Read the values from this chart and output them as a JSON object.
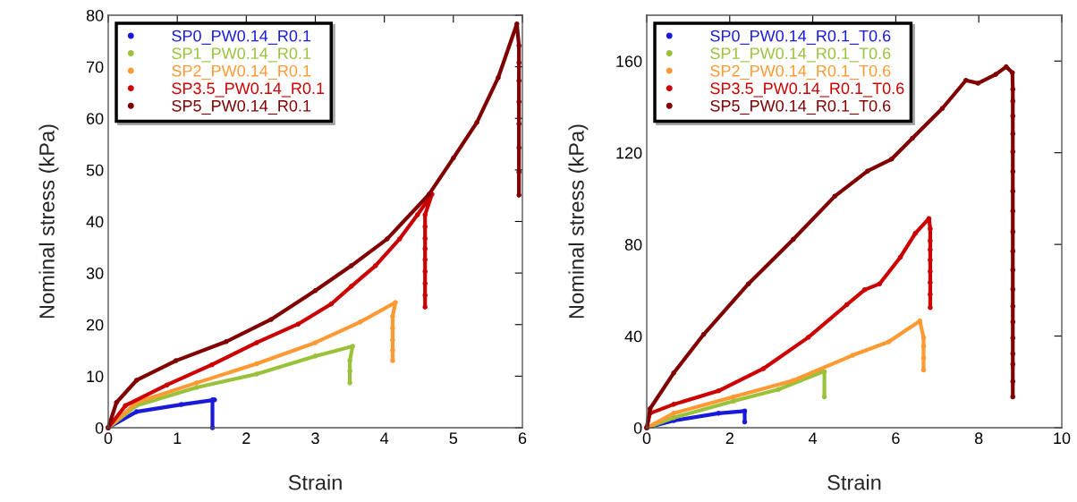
{
  "chart_data": [
    {
      "type": "line",
      "xlabel": "Strain",
      "ylabel": "Nominal stress (kPa)",
      "xlim": [
        0,
        6
      ],
      "ylim": [
        0,
        80
      ],
      "xticks": [
        0,
        1,
        2,
        3,
        4,
        5,
        6
      ],
      "yticks": [
        0,
        10,
        20,
        30,
        40,
        50,
        60,
        70,
        80
      ],
      "legend": "top left",
      "grid": false,
      "marker": "circle",
      "line_style": "solid",
      "series": [
        {
          "name": "SP0_PW0.14_R0.1",
          "color": "#1a1adb",
          "x": [
            0,
            0.41,
            1.06,
            1.54,
            1.51,
            1.51
          ],
          "values": [
            0,
            3.1,
            4.5,
            5.4,
            5.4,
            0
          ]
        },
        {
          "name": "SP1_PW0.14_R0.1",
          "color": "#99c23a",
          "x": [
            0,
            0.41,
            1.28,
            2.15,
            3.0,
            3.54,
            3.5,
            3.5,
            3.5
          ],
          "values": [
            0,
            4.3,
            7.8,
            10.4,
            13.9,
            15.8,
            13,
            11,
            8.7
          ]
        },
        {
          "name": "SP2_PW0.14_R0.1",
          "color": "#ff9933",
          "x": [
            0,
            0.41,
            1.28,
            2.15,
            3.0,
            3.65,
            4.16,
            4.12,
            4.12,
            4.12,
            4.12,
            4.12
          ],
          "values": [
            0,
            4.9,
            8.7,
            12.4,
            16.5,
            20.5,
            24.3,
            21.6,
            19.3,
            17.0,
            15.0,
            13.0
          ]
        },
        {
          "name": "SP3.5_PW0.14_R0.1",
          "color": "#cc0000",
          "x": [
            0,
            0.25,
            0.85,
            1.5,
            2.15,
            2.75,
            3.23,
            3.52,
            3.87,
            4.22,
            4.48,
            4.69,
            4.59,
            4.59,
            4.59,
            4.59,
            4.59,
            4.59,
            4.59,
            4.59,
            4.59
          ],
          "values": [
            0,
            4.3,
            8.3,
            12.2,
            16.5,
            20.1,
            24,
            27.4,
            31.4,
            36.6,
            41.3,
            45.3,
            41.3,
            39,
            36.7,
            34.7,
            32.6,
            30.3,
            28,
            25.7,
            23.4
          ]
        },
        {
          "name": "SP5_PW0.14_R0.1",
          "color": "#800000",
          "x": [
            0,
            0.12,
            0.41,
            0.98,
            1.71,
            2.36,
            3.0,
            3.52,
            4.04,
            4.65,
            5.0,
            5.34,
            5.65,
            5.92,
            5.95,
            5.95,
            5.95,
            5.95,
            5.95,
            5.95,
            5.95,
            5.95
          ],
          "values": [
            0,
            4.9,
            9.2,
            13.0,
            16.7,
            21,
            26.6,
            31.4,
            36.6,
            45.3,
            52.3,
            59.2,
            67.9,
            78.3,
            74.1,
            70.8,
            67.3,
            63.2,
            58.9,
            54.3,
            49.6,
            45.1
          ]
        }
      ]
    },
    {
      "type": "line",
      "xlabel": "Strain",
      "ylabel": "Nominal stress (kPa)",
      "xlim": [
        0,
        10
      ],
      "ylim": [
        0,
        180
      ],
      "xticks": [
        0,
        2,
        4,
        6,
        8,
        10
      ],
      "yticks": [
        0,
        40,
        80,
        120,
        160
      ],
      "legend": "top left",
      "grid": false,
      "marker": "circle",
      "line_style": "solid",
      "series": [
        {
          "name": "SP0_PW0.14_R0.1_T0.6",
          "color": "#1a1adb",
          "x": [
            0,
            0.65,
            1.73,
            2.36,
            2.36
          ],
          "values": [
            0,
            3.1,
            6.3,
            7.3,
            2.5
          ]
        },
        {
          "name": "SP1_PW0.14_R0.1_T0.6",
          "color": "#99c23a",
          "x": [
            0,
            0.65,
            2.09,
            3.17,
            4.25,
            4.28,
            4.28
          ],
          "values": [
            0,
            4.4,
            11.6,
            16.7,
            24.5,
            24.5,
            13.5
          ]
        },
        {
          "name": "SP2_PW0.14_R0.1_T0.6",
          "color": "#ff9933",
          "x": [
            0,
            0.65,
            2.09,
            3.53,
            4.96,
            5.83,
            6.58,
            6.67,
            6.67,
            6.67,
            6.67
          ],
          "values": [
            0,
            6.3,
            13.5,
            20.6,
            31.6,
            37.5,
            46.6,
            39.4,
            35.5,
            30.4,
            25.2
          ]
        },
        {
          "name": "SP3.5_PW0.14_R0.1_T0.6",
          "color": "#cc0000",
          "x": [
            0,
            0.08,
            0.65,
            1.73,
            2.81,
            3.89,
            4.82,
            5.25,
            5.61,
            6.11,
            6.47,
            6.8,
            6.83,
            6.83,
            6.83,
            6.83,
            6.83,
            6.83,
            6.83,
            6.83
          ],
          "values": [
            0,
            6.3,
            10.2,
            16.1,
            25.8,
            39.4,
            53.7,
            60.2,
            62.8,
            74.4,
            84.8,
            91.3,
            86.8,
            81.6,
            77.7,
            73.2,
            68.2,
            63.4,
            58.2,
            52.4
          ]
        },
        {
          "name": "SP5_PW0.14_R0.1_T0.6",
          "color": "#800000",
          "x": [
            0,
            0.08,
            0.65,
            1.37,
            2.45,
            3.53,
            4.53,
            5.32,
            5.9,
            6.4,
            7.12,
            7.69,
            7.98,
            8.41,
            8.66,
            8.81,
            8.82,
            8.82,
            8.82,
            8.82,
            8.82,
            8.82,
            8.82,
            8.82,
            8.82,
            8.82,
            8.82,
            8.82,
            8.82,
            8.82,
            8.82,
            8.82,
            8.82,
            8.82,
            8.82
          ],
          "values": [
            0,
            8.3,
            23.9,
            40.7,
            62.8,
            82.2,
            101,
            112,
            117.2,
            126.3,
            139.3,
            151.6,
            150.3,
            154.2,
            157.5,
            154.9,
            147.7,
            142.5,
            136.1,
            128.3,
            120.5,
            111.8,
            103.2,
            94.6,
            85.5,
            77.0,
            68.9,
            60.4,
            53.0,
            46.2,
            39.2,
            32.3,
            27.7,
            20.2,
            13.5
          ]
        }
      ]
    }
  ]
}
